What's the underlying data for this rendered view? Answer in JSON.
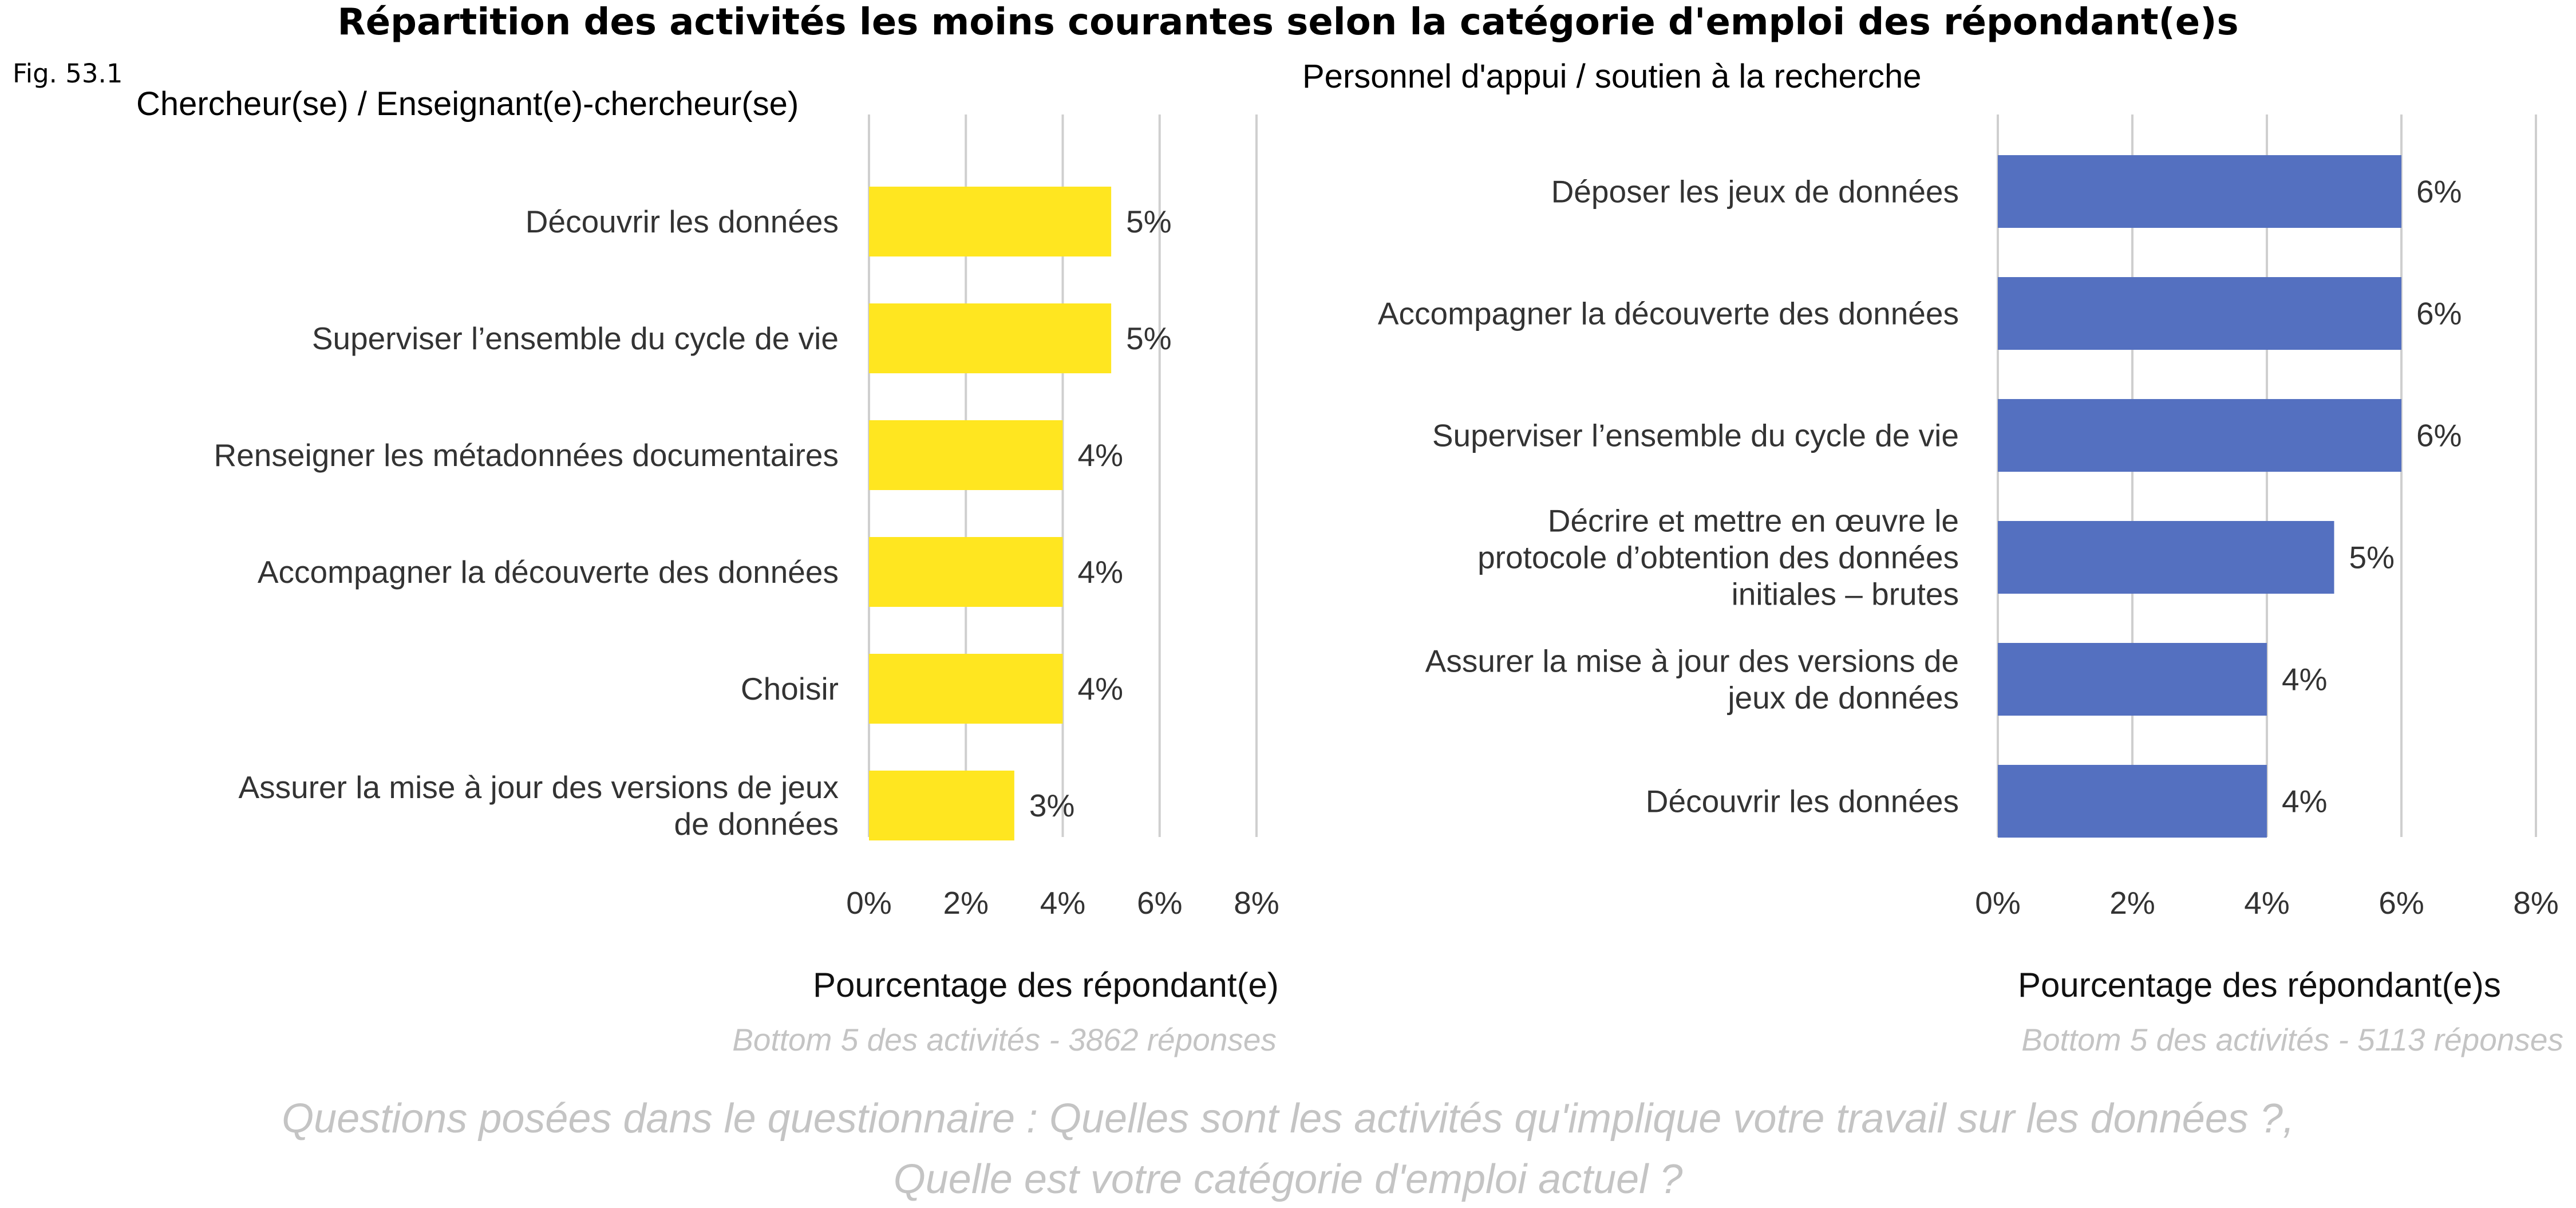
{
  "figure": {
    "title": "Répartition des activités les moins courantes selon la catégorie d'emploi des répondant(e)s",
    "fig_label": "Fig. 53.1",
    "question_line1": "Questions posées dans le questionnaire : Quelles sont les activités qu'implique votre travail sur les données ?,",
    "question_line2": "Quelle est votre catégorie d'emploi actuel ?"
  },
  "chart_data": [
    {
      "type": "bar",
      "orientation": "horizontal",
      "title": "Chercheur(se) / Enseignant(e)-chercheur(se)",
      "xlabel": "Pourcentage des répondant(e)",
      "source": "Bottom 5  des activités - 3862 réponses",
      "categories": [
        "Découvrir les données",
        "Superviser l’ensemble du cycle de vie",
        "Renseigner les métadonnées documentaires",
        "Accompagner la découverte des données",
        "Choisir",
        "Assurer la mise à jour des versions de jeux de données"
      ],
      "values": [
        5,
        5,
        4,
        4,
        4,
        3
      ],
      "value_labels": [
        "5%",
        "5%",
        "4%",
        "4%",
        "4%",
        "3%"
      ],
      "xlim": [
        0,
        8
      ],
      "xticks": [
        "0%",
        "2%",
        "4%",
        "6%",
        "8%"
      ],
      "grid": true,
      "bar_color": "#FFE620"
    },
    {
      "type": "bar",
      "orientation": "horizontal",
      "title": "Personnel d'appui / soutien à la recherche",
      "xlabel": "Pourcentage des répondant(e)s",
      "source": "Bottom 5  des activités - 5113 réponses",
      "categories": [
        "Déposer les jeux de données",
        "Accompagner la découverte des données",
        "Superviser l’ensemble du cycle de vie",
        "Décrire et mettre en œuvre le protocole d’obtention des données initiales – brutes",
        "Assurer la mise à jour des versions de jeux de données",
        "Découvrir les données"
      ],
      "values": [
        6,
        6,
        6,
        5,
        4,
        4
      ],
      "value_labels": [
        "6%",
        "6%",
        "6%",
        "5%",
        "4%",
        "4%"
      ],
      "xlim": [
        0,
        8
      ],
      "xticks": [
        "0%",
        "2%",
        "4%",
        "6%",
        "8%"
      ],
      "grid": true,
      "bar_color": "#5470C0"
    }
  ]
}
